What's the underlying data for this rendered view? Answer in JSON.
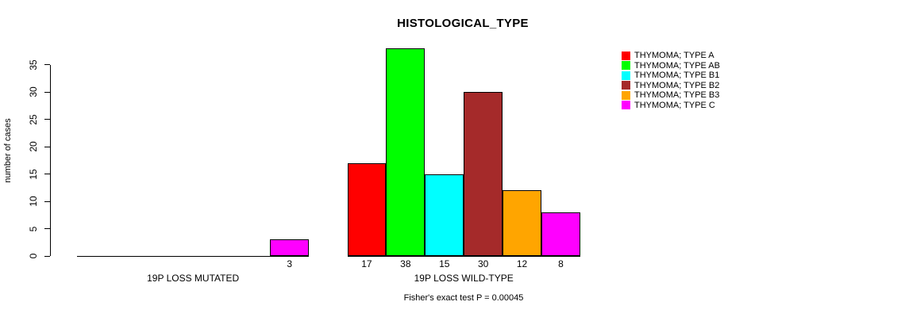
{
  "chart_data": {
    "type": "bar",
    "title": "HISTOLOGICAL_TYPE",
    "ylabel": "number of cases",
    "footer": "Fisher's exact test P = 0.00045",
    "yticks": [
      0,
      5,
      10,
      15,
      20,
      25,
      30,
      35
    ],
    "ylim": [
      0,
      38
    ],
    "grid": false,
    "legend_position": "right",
    "series": [
      {
        "name": "THYMOMA; TYPE A",
        "color": "#FF0000"
      },
      {
        "name": "THYMOMA; TYPE AB",
        "color": "#00FF00"
      },
      {
        "name": "THYMOMA; TYPE B1",
        "color": "#00FFFF"
      },
      {
        "name": "THYMOMA; TYPE B2",
        "color": "#A52A2A"
      },
      {
        "name": "THYMOMA; TYPE B3",
        "color": "#FFA500"
      },
      {
        "name": "THYMOMA; TYPE C",
        "color": "#FF00FF"
      }
    ],
    "groups": [
      {
        "label": "19P LOSS MUTATED",
        "values": [
          0,
          0,
          0,
          0,
          0,
          3
        ]
      },
      {
        "label": "19P LOSS WILD-TYPE",
        "values": [
          17,
          38,
          15,
          30,
          12,
          8
        ]
      }
    ],
    "bar_value_labels": "shown below each nonzero bar"
  }
}
